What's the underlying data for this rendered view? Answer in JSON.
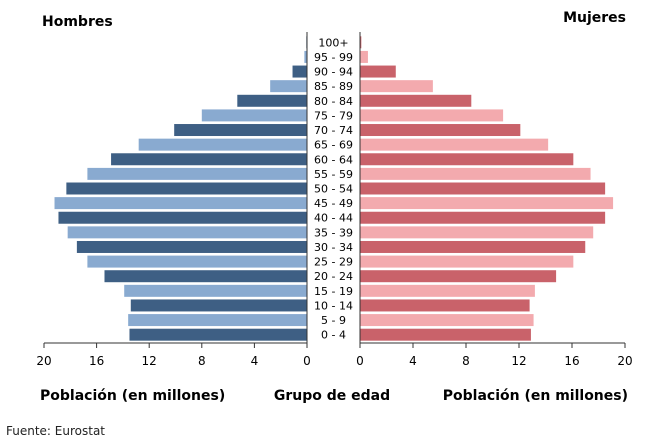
{
  "chart_data": {
    "type": "bar",
    "subtype": "population-pyramid",
    "left_title": "Hombres",
    "right_title": "Mujeres",
    "left_xlabel": "Población (en millones)",
    "center_xlabel": "Grupo de edad",
    "right_xlabel": "Población (en millones)",
    "source": "Fuente: Eurostat",
    "xlim": [
      0,
      20
    ],
    "ticks": [
      20,
      16,
      12,
      8,
      4,
      0
    ],
    "right_ticks": [
      0,
      4,
      8,
      12,
      16,
      20
    ],
    "categories": [
      "0 - 4",
      "5 - 9",
      "10 - 14",
      "15 - 19",
      "20 - 24",
      "25 - 29",
      "30 - 34",
      "35 - 39",
      "40 - 44",
      "45 - 49",
      "50 - 54",
      "55 - 59",
      "60 - 64",
      "65 - 69",
      "70 - 74",
      "75 - 79",
      "80 - 84",
      "85 - 89",
      "90 - 94",
      "95 - 99",
      "100+"
    ],
    "series": [
      {
        "side": "left",
        "values": [
          13.5,
          13.6,
          13.4,
          13.9,
          15.4,
          16.7,
          17.5,
          18.2,
          18.9,
          19.2,
          18.3,
          16.7,
          14.9,
          12.8,
          10.1,
          8.0,
          5.3,
          2.8,
          1.1,
          0.2,
          0.05
        ],
        "colors": [
          "#3e5f84",
          "#89aad0"
        ]
      },
      {
        "side": "right",
        "values": [
          12.9,
          13.1,
          12.8,
          13.2,
          14.8,
          16.1,
          17.0,
          17.6,
          18.5,
          19.1,
          18.5,
          17.4,
          16.1,
          14.2,
          12.1,
          10.8,
          8.4,
          5.5,
          2.7,
          0.6,
          0.1
        ],
        "colors": [
          "#c9626a",
          "#f3aaae"
        ]
      }
    ],
    "grid": false
  }
}
